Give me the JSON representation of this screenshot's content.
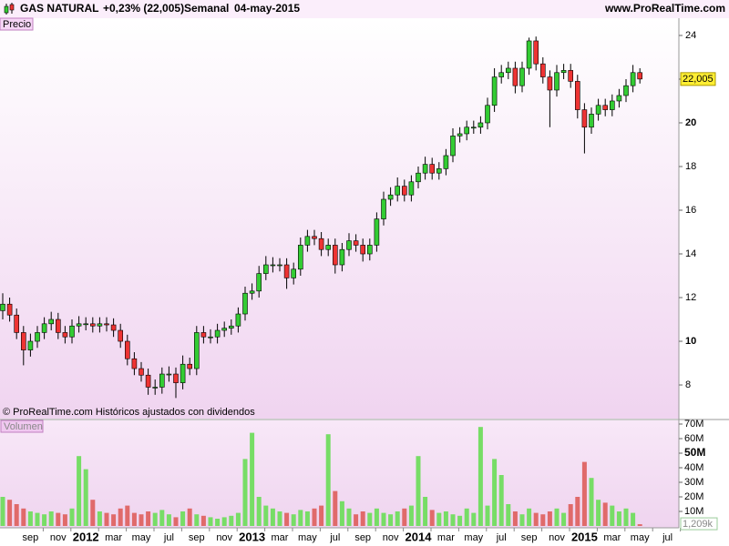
{
  "header": {
    "instrument": "GAS NATURAL",
    "change": "+0,23% (22,005)",
    "period": "Semanal",
    "date": "04-may-2015",
    "website": "www.ProRealTime.com"
  },
  "chart_data": [
    {
      "type": "candlestick",
      "panel_label": "Precio",
      "note": "© ProRealTime.com  Históricos ajustados con dividendos",
      "up_color": "#33cc33",
      "down_color": "#ee3333",
      "open": [
        11.4,
        11.7,
        11.2,
        10.4,
        9.6,
        10.0,
        10.4,
        10.8,
        11.0,
        10.4,
        10.2,
        10.7,
        10.8,
        10.8,
        10.7,
        10.8,
        10.75,
        10.5,
        10.0,
        9.2,
        8.75,
        8.45,
        7.9,
        7.9,
        8.5,
        8.5,
        8.1,
        8.95,
        8.75,
        10.4,
        10.2,
        10.2,
        10.5,
        10.6,
        10.7,
        11.25,
        12.2,
        12.3,
        13.1,
        13.5,
        13.5,
        13.5,
        12.9,
        13.3,
        14.4,
        14.8,
        14.7,
        14.2,
        14.4,
        13.5,
        14.2,
        14.6,
        14.4,
        14.0,
        14.4,
        15.6,
        16.5,
        16.7,
        17.1,
        16.7,
        17.3,
        17.7,
        18.1,
        17.7,
        17.9,
        18.5,
        19.4,
        19.5,
        19.8,
        19.8,
        20.0,
        20.8,
        22.1,
        22.3,
        22.5,
        21.7,
        22.5,
        23.75,
        22.7,
        22.1,
        21.5,
        22.3,
        22.4,
        21.9,
        20.6,
        19.8,
        20.4,
        20.8,
        20.6,
        21.0,
        21.25,
        21.7,
        22.3,
        null,
        null,
        null,
        null
      ],
      "high": [
        12.2,
        12.0,
        11.5,
        10.7,
        10.35,
        10.7,
        11.1,
        11.35,
        11.3,
        10.7,
        11.0,
        11.15,
        11.1,
        11.1,
        11.1,
        11.1,
        11.05,
        10.8,
        10.3,
        9.5,
        9.05,
        8.75,
        8.25,
        8.8,
        8.85,
        8.8,
        9.35,
        9.25,
        10.7,
        10.7,
        10.55,
        10.8,
        10.9,
        11.0,
        11.55,
        12.5,
        12.65,
        13.45,
        13.9,
        13.85,
        13.8,
        13.8,
        13.6,
        14.75,
        15.1,
        15.1,
        15.0,
        14.7,
        14.7,
        14.5,
        14.95,
        14.9,
        14.7,
        14.7,
        15.9,
        16.85,
        17.05,
        17.5,
        17.4,
        17.6,
        18.0,
        18.45,
        18.4,
        18.2,
        18.8,
        19.75,
        19.8,
        20.1,
        20.1,
        20.3,
        21.15,
        22.5,
        22.65,
        22.8,
        22.8,
        22.8,
        23.9,
        23.95,
        23.0,
        22.4,
        22.65,
        22.7,
        22.7,
        22.2,
        20.9,
        20.7,
        21.1,
        21.1,
        21.3,
        21.55,
        22.0,
        22.65,
        22.5,
        null,
        null,
        null,
        null
      ],
      "low": [
        11.0,
        10.9,
        10.1,
        8.9,
        9.3,
        9.7,
        10.1,
        10.5,
        10.1,
        9.9,
        9.9,
        10.4,
        10.5,
        10.4,
        10.4,
        10.45,
        10.2,
        9.7,
        8.9,
        8.45,
        8.15,
        7.55,
        7.55,
        7.6,
        8.15,
        7.4,
        7.8,
        8.45,
        8.45,
        9.9,
        9.9,
        9.9,
        10.2,
        10.3,
        10.4,
        10.95,
        11.9,
        12.0,
        12.8,
        13.15,
        13.2,
        12.4,
        12.6,
        13.0,
        14.1,
        14.4,
        13.9,
        13.9,
        13.1,
        13.2,
        13.9,
        14.1,
        13.65,
        13.7,
        14.1,
        15.3,
        16.2,
        16.4,
        16.4,
        16.4,
        17.0,
        17.4,
        17.4,
        17.4,
        17.6,
        18.2,
        19.1,
        19.2,
        19.5,
        19.5,
        19.7,
        20.5,
        21.8,
        22.0,
        21.35,
        21.4,
        22.2,
        22.4,
        21.8,
        19.8,
        21.2,
        22.0,
        21.6,
        20.2,
        18.6,
        19.5,
        20.1,
        20.3,
        20.3,
        20.7,
        20.95,
        21.4,
        21.8,
        null,
        null,
        null,
        null
      ],
      "close": [
        11.7,
        11.2,
        10.4,
        9.6,
        10.0,
        10.4,
        10.8,
        11.0,
        10.4,
        10.2,
        10.7,
        10.8,
        10.8,
        10.7,
        10.8,
        10.75,
        10.5,
        10.0,
        9.2,
        8.75,
        8.45,
        7.9,
        7.9,
        8.5,
        8.5,
        8.1,
        8.95,
        8.75,
        10.4,
        10.2,
        10.2,
        10.5,
        10.6,
        10.7,
        11.25,
        12.2,
        12.3,
        13.1,
        13.5,
        13.5,
        13.5,
        12.9,
        13.3,
        14.4,
        14.8,
        14.7,
        14.2,
        14.4,
        13.5,
        14.2,
        14.6,
        14.4,
        14.0,
        14.4,
        15.6,
        16.5,
        16.7,
        17.1,
        16.7,
        17.3,
        17.7,
        18.1,
        17.7,
        17.9,
        18.5,
        19.4,
        19.5,
        19.8,
        19.8,
        20.0,
        20.8,
        22.1,
        22.3,
        22.5,
        21.7,
        22.5,
        23.75,
        22.7,
        22.1,
        21.5,
        22.3,
        22.4,
        21.9,
        20.6,
        19.8,
        20.4,
        20.8,
        20.6,
        21.0,
        21.25,
        21.7,
        22.3,
        22.005,
        null,
        null,
        null,
        null
      ],
      "last_price": {
        "value": 22.005,
        "label": "22,005"
      },
      "ylim": [
        6.46,
        24.79
      ],
      "yticks": [
        8,
        10,
        12,
        14,
        16,
        18,
        20,
        22,
        24
      ],
      "bold_ticks": [
        10,
        20
      ]
    },
    {
      "type": "bar",
      "panel_label": "Volumen",
      "up_color": "#77dd66",
      "down_color": "#e06a6a",
      "categories": [
        null,
        null,
        null,
        null,
        "sep",
        null,
        null,
        null,
        "nov",
        null,
        null,
        null,
        "2012",
        null,
        null,
        null,
        "mar",
        null,
        null,
        null,
        "may",
        null,
        null,
        null,
        "jul",
        null,
        null,
        null,
        "sep",
        null,
        null,
        null,
        "nov",
        null,
        null,
        null,
        "2013",
        null,
        null,
        null,
        "mar",
        null,
        null,
        null,
        "may",
        null,
        null,
        null,
        "jul",
        null,
        null,
        null,
        "sep",
        null,
        null,
        null,
        "nov",
        null,
        null,
        null,
        "2014",
        null,
        null,
        null,
        "mar",
        null,
        null,
        null,
        "may",
        null,
        null,
        null,
        "jul",
        null,
        null,
        null,
        "sep",
        null,
        null,
        null,
        "nov",
        null,
        null,
        null,
        "2015",
        null,
        null,
        null,
        "mar",
        null,
        null,
        null,
        "may",
        null,
        null,
        null,
        "jul"
      ],
      "values": [
        20,
        18,
        15,
        12,
        10,
        9,
        8,
        10,
        9,
        8,
        12,
        48,
        39,
        18,
        10,
        9,
        8,
        12,
        14,
        9,
        8,
        10,
        9,
        11,
        8,
        6,
        10,
        12,
        8,
        7,
        6,
        5,
        6,
        7,
        9,
        46,
        64,
        20,
        14,
        12,
        10,
        9,
        8,
        11,
        10,
        12,
        14,
        63,
        24,
        17,
        12,
        8,
        10,
        9,
        12,
        9,
        8,
        10,
        12,
        14,
        48,
        20,
        11,
        9,
        10,
        8,
        7,
        12,
        9,
        68,
        14,
        46,
        35,
        15,
        10,
        8,
        12,
        9,
        8,
        10,
        12,
        9,
        15,
        20,
        44,
        33,
        18,
        16,
        14,
        10,
        12,
        9,
        1.209,
        null,
        null,
        null,
        null
      ],
      "last_value": {
        "value": 1.209,
        "label": "1,209k"
      },
      "ylim": [
        0,
        72.5
      ],
      "yticks": [
        {
          "value": 10,
          "label": "10M"
        },
        {
          "value": 20,
          "label": "20M"
        },
        {
          "value": 30,
          "label": "30M"
        },
        {
          "value": 40,
          "label": "40M"
        },
        {
          "value": 50,
          "label": "50M"
        },
        {
          "value": 60,
          "label": "60M"
        },
        {
          "value": 70,
          "label": "70M"
        }
      ],
      "bold_ticks": [
        50
      ]
    }
  ]
}
